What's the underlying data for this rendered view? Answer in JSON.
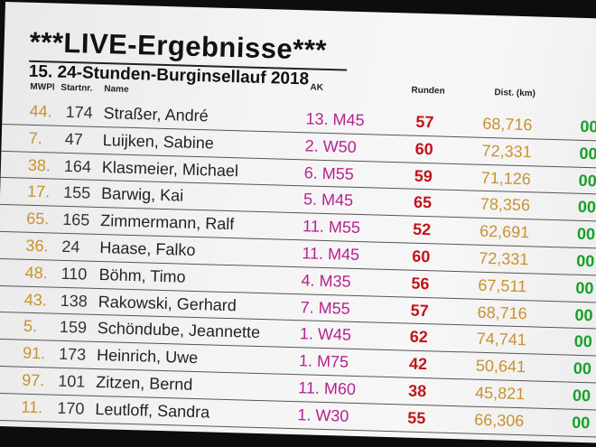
{
  "header": {
    "title": "***LIVE-Ergebnisse***",
    "subtitle": "15. 24-Stunden-Burginsellauf 2018"
  },
  "columns": {
    "mwpl": "MWPl",
    "startnr": "Startnr.",
    "name": "Name",
    "ak": "AK",
    "runden": "Runden",
    "dist": "Dist. (km)"
  },
  "rows": [
    {
      "place": "44.",
      "nr": "174",
      "name": "Straßer, André",
      "ak": "13. M45",
      "runden": "57",
      "dist": "68,716",
      "extra": "00"
    },
    {
      "place": "7.",
      "nr": "47",
      "name": "Luijken, Sabine",
      "ak": "2. W50",
      "runden": "60",
      "dist": "72,331",
      "extra": "00"
    },
    {
      "place": "38.",
      "nr": "164",
      "name": "Klasmeier, Michael",
      "ak": "6. M55",
      "runden": "59",
      "dist": "71,126",
      "extra": "00"
    },
    {
      "place": "17.",
      "nr": "155",
      "name": "Barwig, Kai",
      "ak": "5. M45",
      "runden": "65",
      "dist": "78,356",
      "extra": "00"
    },
    {
      "place": "65.",
      "nr": "165",
      "name": "Zimmermann, Ralf",
      "ak": "11. M55",
      "runden": "52",
      "dist": "62,691",
      "extra": "00"
    },
    {
      "place": "36.",
      "nr": "24",
      "name": "Haase, Falko",
      "ak": "11. M45",
      "runden": "60",
      "dist": "72,331",
      "extra": "00"
    },
    {
      "place": "48.",
      "nr": "110",
      "name": "Böhm, Timo",
      "ak": "4. M35",
      "runden": "56",
      "dist": "67,511",
      "extra": "00"
    },
    {
      "place": "43.",
      "nr": "138",
      "name": "Rakowski, Gerhard",
      "ak": "7. M55",
      "runden": "57",
      "dist": "68,716",
      "extra": "00"
    },
    {
      "place": "5.",
      "nr": "159",
      "name": "Schöndube, Jeannette",
      "ak": "1. W45",
      "runden": "62",
      "dist": "74,741",
      "extra": "00"
    },
    {
      "place": "91.",
      "nr": "173",
      "name": "Heinrich, Uwe",
      "ak": "1. M75",
      "runden": "42",
      "dist": "50,641",
      "extra": "00"
    },
    {
      "place": "97.",
      "nr": "101",
      "name": "Zitzen, Bernd",
      "ak": "11. M60",
      "runden": "38",
      "dist": "45,821",
      "extra": "00"
    },
    {
      "place": "11.",
      "nr": "170",
      "name": "Leutloff, Sandra",
      "ak": "1. W30",
      "runden": "55",
      "dist": "66,306",
      "extra": "00"
    }
  ],
  "colors": {
    "place": "#c8922d",
    "ak": "#b8208f",
    "runden": "#c31419",
    "dist": "#c8922d",
    "extra": "#18a02a"
  }
}
